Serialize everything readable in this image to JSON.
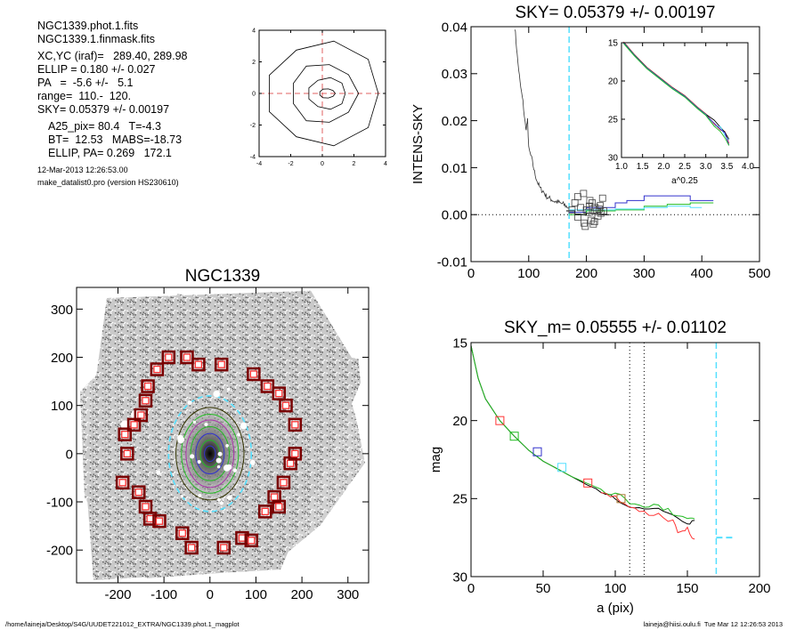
{
  "info": {
    "lines_a": [
      "NGC1339.phot.1.fits",
      "NGC1339.1.finmask.fits"
    ],
    "lines_b": [
      "XC,YC (iraf)=   289.40, 289.98",
      "ELLIP = 0.180 +/- 0.027",
      "PA   =  -5.6 +/-   5.1",
      "range=  110.-  120.",
      "SKY= 0.05379 +/- 0.00197"
    ],
    "lines_c": [
      "A25_pix= 80.4   T=-4.3",
      "BT=  12.53   MABS=-18.73",
      "ELLIP, PA= 0.269   172.1"
    ],
    "date": "12-Mar-2013 12:26:53.00",
    "program": "make_datalist0.pro (version HS230610)"
  },
  "footer": {
    "left": "/home/laineja/Desktop/S4G/UUDET221012_EXTRA/NGC1339.phot.1_magplot",
    "right": "laineja@hiisi.oulu.fi  Tue Mar 12 12:26:53 2013"
  },
  "colors": {
    "sky_marker": "#55e0ff",
    "box_outer": "#7a0000",
    "box_inner": "#ff3333",
    "isophote_green": "#22bb22",
    "isophote_blue": "#3333cc"
  },
  "chart_data": [
    {
      "type": "line",
      "name": "contour",
      "xlim": [
        -4,
        4
      ],
      "ylim": [
        -4,
        4
      ],
      "xticks": [
        "-4",
        "-2",
        "0",
        "2",
        "4"
      ],
      "yticks": [
        "-4",
        "-2",
        "0",
        "2",
        "4"
      ],
      "contours": [
        {
          "a": 3.6,
          "b": 3.3
        },
        {
          "a": 2.1,
          "b": 1.9
        },
        {
          "a": 1.2,
          "b": 1.0
        },
        {
          "a": 0.5,
          "b": 0.3
        }
      ],
      "center": [
        0.3,
        0.0
      ]
    },
    {
      "type": "line",
      "name": "sky",
      "title": "SKY= 0.05379 +/- 0.00197",
      "ylabel": "INTENS-SKY",
      "xlim": [
        0,
        500
      ],
      "ylim": [
        -0.01,
        0.04
      ],
      "xticks": [
        "0",
        "100",
        "200",
        "300",
        "400",
        "500"
      ],
      "yticks": [
        "-0.01",
        "0.00",
        "0.01",
        "0.02",
        "0.03",
        "0.04"
      ],
      "sky_line_x": 170,
      "profile_x": [
        76,
        80,
        85,
        90,
        95,
        98,
        100,
        105,
        110,
        115,
        120,
        125,
        130,
        135,
        140,
        145,
        150,
        155,
        160,
        165,
        170
      ],
      "profile_y": [
        0.04,
        0.034,
        0.028,
        0.024,
        0.018,
        0.02,
        0.014,
        0.012,
        0.009,
        0.007,
        0.0055,
        0.005,
        0.004,
        0.0035,
        0.0032,
        0.0028,
        0.0027,
        0.0024,
        0.0022,
        0.0018,
        0.0014
      ],
      "sky_boxes": [
        [
          175,
          0.001
        ],
        [
          180,
          0.0025
        ],
        [
          185,
          -0.0005
        ],
        [
          190,
          0.0015
        ],
        [
          195,
          0.0045
        ],
        [
          198,
          -0.0025
        ],
        [
          200,
          0.001
        ],
        [
          203,
          0.0005
        ],
        [
          205,
          0.0018
        ],
        [
          208,
          -0.0012
        ],
        [
          210,
          0.0025
        ],
        [
          212,
          -0.002
        ],
        [
          215,
          0.0015
        ],
        [
          218,
          0.0007
        ],
        [
          220,
          -0.0003
        ],
        [
          222,
          0.0012
        ],
        [
          225,
          0.0003
        ],
        [
          228,
          0.0035
        ],
        [
          230,
          0.0008
        ],
        [
          185,
          0.0038
        ],
        [
          196,
          -0.0018
        ],
        [
          206,
          0.003
        ],
        [
          214,
          -0.0015
        ],
        [
          224,
          0.0019
        ]
      ],
      "series": [
        {
          "color": "#3333cc",
          "x": [
            170,
            200,
            250,
            270,
            300,
            340,
            380,
            420
          ],
          "y": [
            0.0005,
            0.0015,
            0.0025,
            0.003,
            0.004,
            0.004,
            0.003,
            0.003
          ]
        },
        {
          "color": "#22bb22",
          "x": [
            170,
            200,
            250,
            300,
            340,
            380,
            420
          ],
          "y": [
            0.0,
            0.0008,
            0.001,
            0.0018,
            0.0022,
            0.0025,
            0.0022
          ]
        },
        {
          "color": "#55e0ff",
          "x": [
            170,
            200,
            250,
            300,
            340,
            380,
            400
          ],
          "y": [
            0.001,
            0.001,
            0.0012,
            0.0015,
            0.0018,
            0.0015,
            0.0016
          ]
        },
        {
          "color": "#000000",
          "x": [
            165,
            180,
            200,
            220,
            240
          ],
          "y": [
            0.0008,
            0.0,
            0.0003,
            0.0,
            0.0
          ]
        }
      ],
      "inset": {
        "xlabel": "a^0.25",
        "xlim": [
          1.0,
          4.0
        ],
        "ylim": [
          15,
          30
        ],
        "xticks": [
          "1.0",
          "1.5",
          "2.0",
          "2.5",
          "3.0",
          "3.5",
          "4.0"
        ],
        "yticks": [
          "15",
          "20",
          "25",
          "30"
        ],
        "x": [
          1.05,
          1.3,
          1.6,
          1.9,
          2.2,
          2.5,
          2.8,
          3.0,
          3.2,
          3.35,
          3.45,
          3.55
        ],
        "y": [
          15.0,
          16.6,
          18.3,
          19.6,
          20.9,
          22.0,
          23.5,
          24.4,
          25.5,
          26.2,
          27.0,
          28.0
        ]
      }
    },
    {
      "type": "scatter",
      "name": "galaxy-image",
      "title": "NGC1339",
      "xlim": [
        -290,
        345
      ],
      "ylim": [
        -268,
        345
      ],
      "xticks": [
        "-200",
        "-100",
        "0",
        "100",
        "200",
        "300"
      ],
      "yticks": [
        "-200",
        "-100",
        "0",
        "100",
        "200",
        "300"
      ],
      "ellipses": [
        {
          "a": 120,
          "b": 90,
          "color": "#55e0ff",
          "dash": true
        },
        {
          "a": 96,
          "b": 74,
          "color": "#333300"
        },
        {
          "a": 82,
          "b": 62,
          "color": "#22bb22"
        },
        {
          "a": 70,
          "b": 52,
          "color": "#aa33aa"
        },
        {
          "a": 56,
          "b": 42,
          "color": "#22bb22"
        },
        {
          "a": 42,
          "b": 31,
          "color": "#3333cc"
        },
        {
          "a": 28,
          "b": 21,
          "color": "#22bb22"
        },
        {
          "a": 16,
          "b": 12,
          "color": "#3333cc"
        }
      ],
      "sky_boxes": [
        [
          -90,
          200
        ],
        [
          -50,
          200
        ],
        [
          -25,
          185
        ],
        [
          25,
          185
        ],
        [
          95,
          165
        ],
        [
          125,
          140
        ],
        [
          150,
          125
        ],
        [
          -115,
          175
        ],
        [
          -135,
          140
        ],
        [
          -140,
          110
        ],
        [
          -150,
          80
        ],
        [
          -185,
          40
        ],
        [
          -165,
          60
        ],
        [
          -180,
          0
        ],
        [
          -190,
          -60
        ],
        [
          -155,
          -80
        ],
        [
          -140,
          -110
        ],
        [
          -130,
          -135
        ],
        [
          -110,
          -140
        ],
        [
          -60,
          -165
        ],
        [
          -40,
          -195
        ],
        [
          30,
          -195
        ],
        [
          70,
          -175
        ],
        [
          90,
          -180
        ],
        [
          120,
          -120
        ],
        [
          140,
          -90
        ],
        [
          160,
          -60
        ],
        [
          175,
          -20
        ],
        [
          185,
          0
        ],
        [
          150,
          -110
        ],
        [
          185,
          60
        ],
        [
          165,
          100
        ]
      ]
    },
    {
      "type": "line",
      "name": "magnitude",
      "title": "SKY_m=  0.05555 +/- 0.01102",
      "xlabel": "a (pix)",
      "ylabel": "mag",
      "xlim": [
        0,
        200
      ],
      "ylim": [
        30,
        15
      ],
      "xticks": [
        "0",
        "50",
        "100",
        "150",
        "200"
      ],
      "yticks": [
        "15",
        "20",
        "25",
        "30"
      ],
      "vlines_dotted": [
        110,
        120
      ],
      "sky_line_x": 170,
      "sky_mark": {
        "x": [
          170,
          183
        ],
        "y": 27.5
      },
      "series": [
        {
          "color": "#000000",
          "x": [
            0,
            5,
            10,
            20,
            30,
            40,
            50,
            60,
            70,
            80,
            90,
            100,
            110,
            120,
            130,
            140,
            150,
            155
          ],
          "y": [
            15.2,
            17.3,
            18.6,
            20.0,
            21.0,
            21.9,
            22.6,
            23.1,
            23.6,
            24.1,
            24.5,
            24.9,
            25.5,
            25.7,
            25.6,
            26.0,
            26.5,
            26.4
          ]
        },
        {
          "color": "#22bb22",
          "x": [
            0,
            5,
            10,
            20,
            30,
            40,
            50,
            60,
            70,
            80,
            90,
            100,
            110,
            120,
            130,
            140,
            150,
            155
          ],
          "y": [
            15.2,
            17.3,
            18.6,
            20.0,
            21.0,
            21.9,
            22.6,
            23.1,
            23.6,
            24.0,
            24.4,
            24.7,
            25.2,
            25.4,
            25.5,
            25.9,
            26.2,
            26.3
          ]
        },
        {
          "color": "#ff3333",
          "x": [
            90,
            100,
            110,
            120,
            130,
            140,
            145,
            150,
            155
          ],
          "y": [
            24.5,
            24.9,
            25.6,
            25.9,
            26.0,
            26.5,
            27.3,
            27.0,
            27.6
          ]
        }
      ],
      "boxes": [
        {
          "x": 20,
          "y": 20.0,
          "color": "#ff3333"
        },
        {
          "x": 30,
          "y": 21.0,
          "color": "#22bb22"
        },
        {
          "x": 46,
          "y": 22.0,
          "color": "#3333cc"
        },
        {
          "x": 63,
          "y": 23.0,
          "color": "#55e0ff"
        },
        {
          "x": 81,
          "y": 24.0,
          "color": "#ff3333"
        },
        {
          "x": 104,
          "y": 25.0,
          "color": "#aa7733"
        }
      ]
    }
  ]
}
